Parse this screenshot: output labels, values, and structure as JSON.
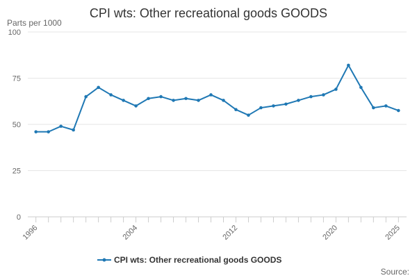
{
  "chart_data": {
    "type": "line",
    "title": "CPI wts: Other recreational goods GOODS",
    "ylabel": "Parts per 1000",
    "xlabel": "",
    "ylim": [
      0,
      100
    ],
    "yticks": [
      "0",
      "25",
      "50",
      "75",
      "100"
    ],
    "xticks": [
      "1996",
      "2004",
      "2012",
      "2020",
      "2025"
    ],
    "grid": "horizontal",
    "legend": "bottom",
    "series": [
      {
        "name": "CPI wts: Other recreational goods GOODS",
        "color": "#1f78b4",
        "x": [
          1996,
          1997,
          1998,
          1999,
          2000,
          2001,
          2002,
          2003,
          2004,
          2005,
          2006,
          2007,
          2008,
          2009,
          2010,
          2011,
          2012,
          2013,
          2014,
          2015,
          2016,
          2017,
          2018,
          2019,
          2020,
          2021,
          2022,
          2023,
          2024,
          2025
        ],
        "values": [
          46,
          46,
          49,
          47,
          65,
          70,
          66,
          63,
          60,
          64,
          65,
          63,
          64,
          63,
          66,
          63,
          58,
          55,
          59,
          60,
          61,
          63,
          65,
          66,
          69,
          82,
          70,
          59,
          60,
          57.5
        ]
      }
    ],
    "source_label": "Source:"
  }
}
